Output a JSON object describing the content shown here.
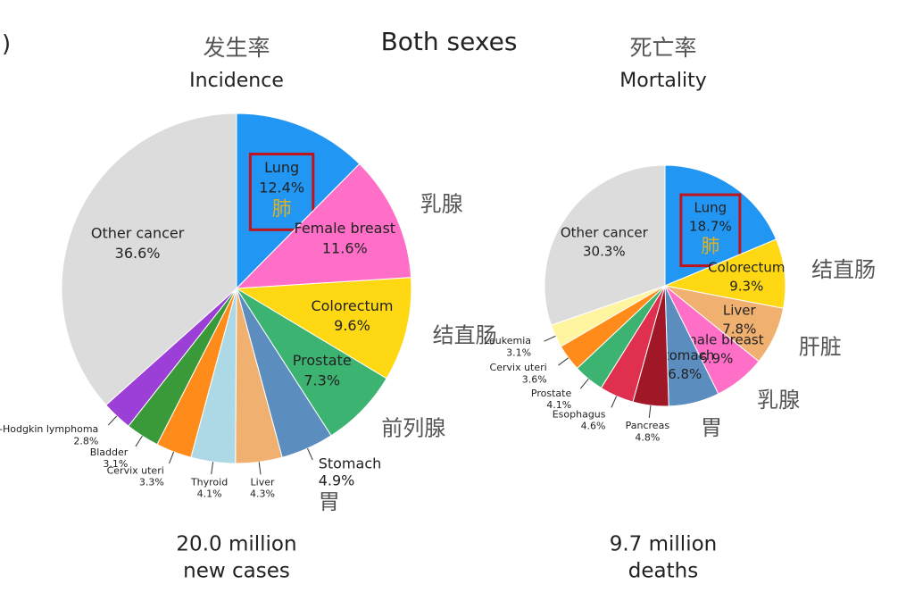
{
  "heading": "Both sexes",
  "fragment": ")",
  "chart_data": [
    {
      "type": "pie",
      "title_zh": "发生率",
      "title": "Incidence",
      "caption": [
        "20.0 million",
        "new cases"
      ],
      "categories": [
        "Lung",
        "Female breast",
        "Colorectum",
        "Prostate",
        "Stomach",
        "Liver",
        "Thyroid",
        "Cervix uteri",
        "Bladder",
        "Non-Hodgkin lymphoma",
        "Other cancer"
      ],
      "zh_labels": [
        "肺",
        "乳腺",
        "结直肠",
        "前列腺",
        "胃",
        null,
        null,
        null,
        null,
        null,
        null
      ],
      "values": [
        12.4,
        11.6,
        9.6,
        7.3,
        4.9,
        4.3,
        4.1,
        3.3,
        3.1,
        2.8,
        36.6
      ],
      "value_labels": [
        "12.4%",
        "11.6%",
        "9.6%",
        "7.3%",
        "4.9%",
        "4.3%",
        "4.1%",
        "3.3%",
        "3.1%",
        "2.8%",
        "36.6%"
      ],
      "colors": [
        "#2196f3",
        "#ff6ec7",
        "#ffd814",
        "#3cb371",
        "#5b8dbf",
        "#f0b070",
        "#add8e6",
        "#ff8c1a",
        "#3a9a3a",
        "#9b3fd6",
        "#dcdcdc"
      ]
    },
    {
      "type": "pie",
      "title_zh": "死亡率",
      "title": "Mortality",
      "caption": [
        "9.7 million",
        "deaths"
      ],
      "categories": [
        "Lung",
        "Colorectum",
        "Liver",
        "Female breast",
        "Stomach",
        "Pancreas",
        "Esophagus",
        "Prostate",
        "Cervix uteri",
        "Leukemia",
        "Other cancer"
      ],
      "zh_labels": [
        "肺",
        "结直肠",
        "肝脏",
        "乳腺",
        "胃",
        null,
        null,
        null,
        null,
        null,
        null
      ],
      "values": [
        18.7,
        9.3,
        7.8,
        6.9,
        6.8,
        4.8,
        4.6,
        4.1,
        3.6,
        3.1,
        30.3
      ],
      "value_labels": [
        "18.7%",
        "9.3%",
        "7.8%",
        "6.9%",
        "6.8%",
        "4.8%",
        "4.6%",
        "4.1%",
        "3.6%",
        "3.1%",
        "30.3%"
      ],
      "colors": [
        "#2196f3",
        "#ffd814",
        "#f0b070",
        "#ff6ec7",
        "#5b8dbf",
        "#a01828",
        "#e03050",
        "#3cb371",
        "#ff8c1a",
        "#fff5a0",
        "#dcdcdc"
      ]
    }
  ]
}
